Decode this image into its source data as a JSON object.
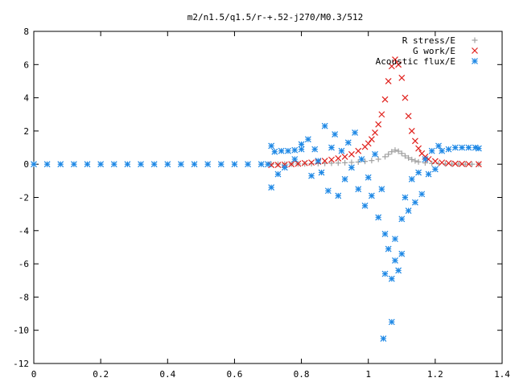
{
  "chart_data": {
    "type": "scatter",
    "title": "m2/n1.5/q1.5/r-+.52-j270/M0.3/512",
    "xlabel": "",
    "ylabel": "",
    "xlim": [
      0,
      1.4
    ],
    "ylim": [
      -12,
      8
    ],
    "xticks": [
      0,
      0.2,
      0.4,
      0.6,
      0.8,
      1,
      1.2,
      1.4
    ],
    "xtick_labels": [
      "0",
      "0.2",
      "0.4",
      "0.6",
      "0.8",
      "1",
      "1.2",
      "1.4"
    ],
    "yticks": [
      -12,
      -10,
      -8,
      -6,
      -4,
      -2,
      0,
      2,
      4,
      6,
      8
    ],
    "ytick_labels": [
      "-12",
      "-10",
      "-8",
      "-6",
      "-4",
      "-2",
      "0",
      "2",
      "4",
      "6",
      "8"
    ],
    "grid": false,
    "legend_position": "top-right",
    "series": [
      {
        "name": "R stress/E",
        "marker": "plus",
        "color": "#a0a0a0",
        "points": [
          [
            0.71,
            0.0
          ],
          [
            0.73,
            0.0
          ],
          [
            0.75,
            0.01
          ],
          [
            0.77,
            0.01
          ],
          [
            0.79,
            0.02
          ],
          [
            0.81,
            0.02
          ],
          [
            0.83,
            0.03
          ],
          [
            0.85,
            0.04
          ],
          [
            0.87,
            0.05
          ],
          [
            0.89,
            0.06
          ],
          [
            0.91,
            0.07
          ],
          [
            0.93,
            0.09
          ],
          [
            0.95,
            0.11
          ],
          [
            0.97,
            0.13
          ],
          [
            0.99,
            0.17
          ],
          [
            1.01,
            0.22
          ],
          [
            1.03,
            0.3
          ],
          [
            1.05,
            0.45
          ],
          [
            1.06,
            0.6
          ],
          [
            1.07,
            0.75
          ],
          [
            1.08,
            0.85
          ],
          [
            1.09,
            0.78
          ],
          [
            1.1,
            0.65
          ],
          [
            1.11,
            0.5
          ],
          [
            1.12,
            0.38
          ],
          [
            1.13,
            0.28
          ],
          [
            1.14,
            0.2
          ],
          [
            1.15,
            0.14
          ],
          [
            1.17,
            0.08
          ],
          [
            1.19,
            0.05
          ],
          [
            1.21,
            0.03
          ],
          [
            1.23,
            0.02
          ],
          [
            1.25,
            0.01
          ],
          [
            1.27,
            0.01
          ],
          [
            1.29,
            0.0
          ],
          [
            1.31,
            0.0
          ],
          [
            1.33,
            0.0
          ]
        ]
      },
      {
        "name": "G work/E",
        "marker": "cross",
        "color": "#e0201c",
        "points": [
          [
            0.71,
            -0.05
          ],
          [
            0.73,
            -0.04
          ],
          [
            0.75,
            -0.02
          ],
          [
            0.77,
            0.0
          ],
          [
            0.79,
            0.03
          ],
          [
            0.81,
            0.07
          ],
          [
            0.83,
            0.1
          ],
          [
            0.85,
            0.15
          ],
          [
            0.87,
            0.2
          ],
          [
            0.89,
            0.27
          ],
          [
            0.91,
            0.35
          ],
          [
            0.93,
            0.45
          ],
          [
            0.95,
            0.6
          ],
          [
            0.97,
            0.8
          ],
          [
            0.99,
            1.05
          ],
          [
            1.0,
            1.25
          ],
          [
            1.01,
            1.5
          ],
          [
            1.02,
            1.9
          ],
          [
            1.03,
            2.4
          ],
          [
            1.04,
            3.0
          ],
          [
            1.05,
            3.9
          ],
          [
            1.06,
            5.0
          ],
          [
            1.07,
            5.9
          ],
          [
            1.08,
            6.3
          ],
          [
            1.09,
            6.0
          ],
          [
            1.1,
            5.2
          ],
          [
            1.11,
            4.0
          ],
          [
            1.12,
            2.9
          ],
          [
            1.13,
            2.0
          ],
          [
            1.14,
            1.4
          ],
          [
            1.15,
            0.95
          ],
          [
            1.16,
            0.65
          ],
          [
            1.17,
            0.45
          ],
          [
            1.18,
            0.3
          ],
          [
            1.2,
            0.18
          ],
          [
            1.22,
            0.1
          ],
          [
            1.24,
            0.06
          ],
          [
            1.26,
            0.03
          ],
          [
            1.28,
            0.02
          ],
          [
            1.3,
            0.01
          ],
          [
            1.33,
            0.0
          ]
        ]
      },
      {
        "name": "Acoustic flux/E",
        "marker": "star",
        "color": "#1e88e5",
        "points": [
          [
            0.0,
            0.0
          ],
          [
            0.04,
            0.0
          ],
          [
            0.08,
            0.0
          ],
          [
            0.12,
            0.0
          ],
          [
            0.16,
            0.0
          ],
          [
            0.2,
            0.0
          ],
          [
            0.24,
            0.0
          ],
          [
            0.28,
            0.0
          ],
          [
            0.32,
            0.0
          ],
          [
            0.36,
            0.0
          ],
          [
            0.4,
            0.0
          ],
          [
            0.44,
            0.0
          ],
          [
            0.48,
            0.0
          ],
          [
            0.52,
            0.0
          ],
          [
            0.56,
            0.0
          ],
          [
            0.6,
            0.0
          ],
          [
            0.64,
            0.0
          ],
          [
            0.68,
            0.0
          ],
          [
            0.7,
            0.0
          ],
          [
            0.71,
            1.1
          ],
          [
            0.72,
            0.75
          ],
          [
            0.74,
            0.8
          ],
          [
            0.76,
            0.8
          ],
          [
            0.78,
            0.85
          ],
          [
            0.8,
            0.9
          ],
          [
            0.71,
            -1.4
          ],
          [
            0.73,
            -0.6
          ],
          [
            0.75,
            -0.2
          ],
          [
            0.78,
            0.3
          ],
          [
            0.8,
            1.2
          ],
          [
            0.82,
            1.5
          ],
          [
            0.83,
            -0.7
          ],
          [
            0.84,
            0.9
          ],
          [
            0.85,
            0.2
          ],
          [
            0.86,
            -0.5
          ],
          [
            0.87,
            2.3
          ],
          [
            0.88,
            -1.6
          ],
          [
            0.89,
            1.0
          ],
          [
            0.9,
            1.8
          ],
          [
            0.91,
            -1.9
          ],
          [
            0.92,
            0.8
          ],
          [
            0.93,
            -0.9
          ],
          [
            0.94,
            1.3
          ],
          [
            0.95,
            -0.2
          ],
          [
            0.96,
            1.9
          ],
          [
            0.97,
            -1.5
          ],
          [
            0.98,
            0.3
          ],
          [
            0.99,
            -2.5
          ],
          [
            1.0,
            -0.8
          ],
          [
            1.01,
            -1.9
          ],
          [
            1.02,
            0.6
          ],
          [
            1.03,
            -3.2
          ],
          [
            1.04,
            -1.5
          ],
          [
            1.05,
            -4.2
          ],
          [
            1.05,
            -6.6
          ],
          [
            1.06,
            -5.1
          ],
          [
            1.07,
            -6.9
          ],
          [
            1.07,
            -9.5
          ],
          [
            1.08,
            -5.8
          ],
          [
            1.08,
            -4.5
          ],
          [
            1.09,
            -6.4
          ],
          [
            1.1,
            -3.3
          ],
          [
            1.1,
            -5.4
          ],
          [
            1.11,
            -2.0
          ],
          [
            1.12,
            -2.8
          ],
          [
            1.13,
            -0.9
          ],
          [
            1.14,
            -2.3
          ],
          [
            1.15,
            -0.5
          ],
          [
            1.16,
            -1.8
          ],
          [
            1.17,
            0.3
          ],
          [
            1.18,
            -0.6
          ],
          [
            1.19,
            0.8
          ],
          [
            1.2,
            -0.3
          ],
          [
            1.21,
            1.1
          ],
          [
            1.22,
            0.8
          ],
          [
            1.24,
            0.9
          ],
          [
            1.26,
            1.0
          ],
          [
            1.28,
            1.0
          ],
          [
            1.3,
            1.0
          ],
          [
            1.32,
            1.0
          ],
          [
            1.33,
            0.95
          ],
          [
            1.045,
            -10.5
          ]
        ]
      }
    ]
  }
}
